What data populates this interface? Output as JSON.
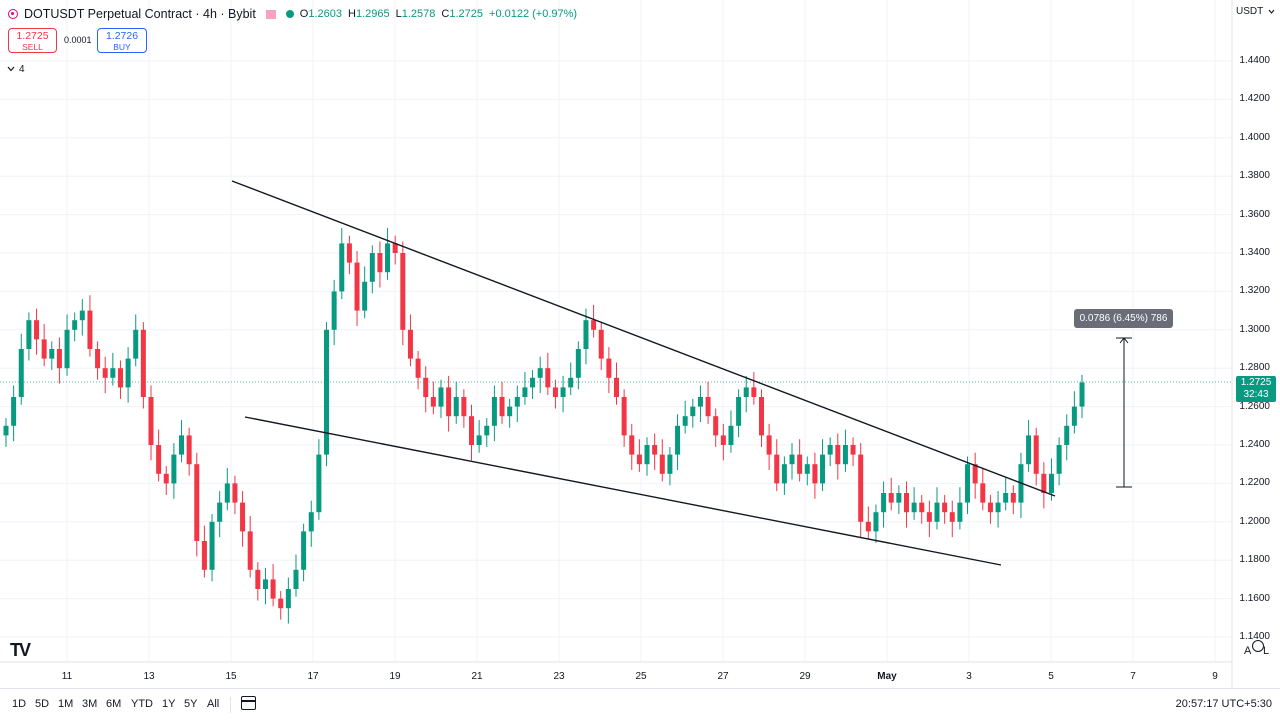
{
  "header": {
    "symbol_title": "DOTUSDT Perpetual Contract · 4h · Bybit",
    "open": "1.2603",
    "high": "1.2965",
    "low": "1.2578",
    "close": "1.2725",
    "change": "+0.0122 (+0.97%)",
    "labels": {
      "o": "O",
      "h": "H",
      "l": "L",
      "c": "C"
    }
  },
  "trade": {
    "sell_price": "1.2725",
    "sell_label": "SELL",
    "spread": "0.0001",
    "buy_price": "1.2726",
    "buy_label": "BUY"
  },
  "indicators_count": "4",
  "currency": "USDT",
  "price_axis": [
    "1.4400",
    "1.4200",
    "1.4000",
    "1.3800",
    "1.3600",
    "1.3400",
    "1.3200",
    "1.3000",
    "1.2800",
    "1.2600",
    "1.2400",
    "1.2200",
    "1.2000",
    "1.1800",
    "1.1600",
    "1.1400"
  ],
  "time_axis": [
    "11",
    "13",
    "15",
    "17",
    "19",
    "21",
    "23",
    "25",
    "27",
    "29",
    "May",
    "3",
    "5",
    "7",
    "9"
  ],
  "current_price": "1.2725",
  "countdown": "32:43",
  "measure_label": "0.0786 (6.45%) 786",
  "scale_buttons": {
    "auto": "A",
    "log": "L"
  },
  "timeframes": [
    "1D",
    "5D",
    "1M",
    "3M",
    "6M",
    "YTD",
    "1Y",
    "5Y",
    "All"
  ],
  "clock": "20:57:17 UTC+5:30",
  "icons": {
    "symbol": "polkadot-icon",
    "goto_date": "calendar-icon",
    "settings": "gear-icon",
    "logo": "tradingview-logo"
  },
  "colors": {
    "up": "#089981",
    "down": "#f23645",
    "accent": "#2962ff"
  },
  "chart_data": {
    "type": "candlestick",
    "interval": "4h",
    "ylim": [
      1.13,
      1.46
    ],
    "date_ticks": [
      "Apr 11",
      "Apr 13",
      "Apr 15",
      "Apr 17",
      "Apr 19",
      "Apr 21",
      "Apr 23",
      "Apr 25",
      "Apr 27",
      "Apr 29",
      "May 1",
      "May 3",
      "May 5",
      "May 7",
      "May 9"
    ],
    "closes": [
      1.25,
      1.265,
      1.29,
      1.305,
      1.295,
      1.285,
      1.29,
      1.28,
      1.3,
      1.305,
      1.31,
      1.29,
      1.28,
      1.275,
      1.28,
      1.27,
      1.285,
      1.3,
      1.265,
      1.24,
      1.225,
      1.22,
      1.235,
      1.245,
      1.23,
      1.19,
      1.175,
      1.2,
      1.21,
      1.22,
      1.21,
      1.195,
      1.175,
      1.165,
      1.17,
      1.16,
      1.155,
      1.165,
      1.175,
      1.195,
      1.205,
      1.235,
      1.3,
      1.32,
      1.345,
      1.335,
      1.31,
      1.325,
      1.34,
      1.33,
      1.345,
      1.34,
      1.3,
      1.285,
      1.275,
      1.265,
      1.26,
      1.27,
      1.255,
      1.265,
      1.255,
      1.24,
      1.245,
      1.25,
      1.265,
      1.255,
      1.26,
      1.265,
      1.27,
      1.275,
      1.28,
      1.27,
      1.265,
      1.27,
      1.275,
      1.29,
      1.305,
      1.3,
      1.285,
      1.275,
      1.265,
      1.245,
      1.235,
      1.23,
      1.24,
      1.235,
      1.225,
      1.235,
      1.25,
      1.255,
      1.26,
      1.265,
      1.255,
      1.245,
      1.24,
      1.25,
      1.265,
      1.27,
      1.265,
      1.245,
      1.235,
      1.22,
      1.23,
      1.235,
      1.225,
      1.23,
      1.22,
      1.235,
      1.24,
      1.23,
      1.24,
      1.235,
      1.2,
      1.195,
      1.205,
      1.215,
      1.21,
      1.215,
      1.205,
      1.21,
      1.205,
      1.2,
      1.21,
      1.205,
      1.2,
      1.21,
      1.23,
      1.22,
      1.21,
      1.205,
      1.21,
      1.215,
      1.21,
      1.23,
      1.245,
      1.225,
      1.215,
      1.225,
      1.24,
      1.25,
      1.26,
      1.2725
    ]
  }
}
